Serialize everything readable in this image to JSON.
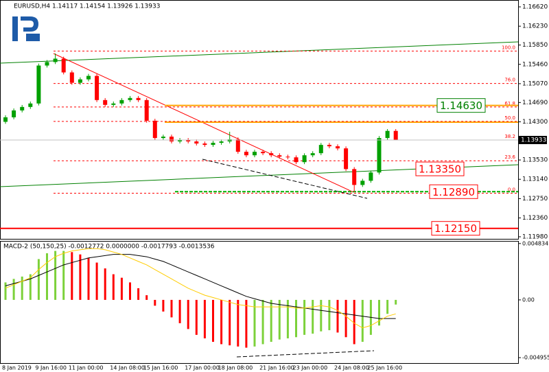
{
  "chart_data": [
    {
      "type": "candlestick",
      "title": "EURUSD,H4  1.14117 1.14154 1.13926 1.13933",
      "categories": [
        "8 Jan 2019",
        null,
        null,
        null,
        "9 Jan 16:00",
        null,
        null,
        null,
        "11 Jan 00:00",
        null,
        null,
        null,
        null,
        "14 Jan 08:00",
        null,
        null,
        null,
        "15 Jan 16:00",
        null,
        null,
        null,
        null,
        "17 Jan 00:00",
        null,
        null,
        null,
        "18 Jan 08:00",
        null,
        null,
        null,
        null,
        "21 Jan 16:00",
        null,
        null,
        null,
        "23 Jan 00:00",
        null,
        null,
        null,
        null,
        "24 Jan 08:00",
        null,
        null,
        null,
        "25 Jan 16:00",
        null,
        null,
        null
      ],
      "open": [
        1.143,
        1.14391,
        1.1453,
        1.146,
        1.1467,
        1.15436,
        1.15506,
        1.15575,
        1.15297,
        1.15088,
        1.15157,
        1.15227,
        1.14739,
        1.14642,
        1.1467,
        1.14739,
        1.14781,
        1.14739,
        1.14322,
        1.13973,
        1.14001,
        1.13904,
        1.13932,
        1.13904,
        1.13862,
        1.13834,
        1.13876,
        1.13904,
        1.13946,
        1.13695,
        1.13625,
        1.13695,
        1.13667,
        1.13625,
        1.13597,
        1.13583,
        1.13486,
        1.13625,
        1.13667,
        1.13834,
        1.13806,
        1.13764,
        1.13346,
        1.13026,
        1.1311,
        1.13277,
        1.13973,
        1.14117
      ],
      "high": [
        1.14431,
        1.1457,
        1.1464,
        1.1471,
        1.15476,
        1.15546,
        1.1568,
        1.15615,
        1.15337,
        1.15197,
        1.15267,
        1.15267,
        1.14779,
        1.1471,
        1.14779,
        1.14821,
        1.14821,
        1.14779,
        1.14362,
        1.14041,
        1.14041,
        1.13972,
        1.13972,
        1.13944,
        1.13902,
        1.13916,
        1.13944,
        1.141,
        1.13986,
        1.13735,
        1.13735,
        1.13735,
        1.13707,
        1.13665,
        1.13637,
        1.13623,
        1.13665,
        1.13707,
        1.13874,
        1.13874,
        1.13846,
        1.13804,
        1.13386,
        1.1315,
        1.13317,
        1.14013,
        1.14154,
        1.14154
      ],
      "low": [
        1.1426,
        1.14351,
        1.1449,
        1.1456,
        1.1463,
        1.15396,
        1.15466,
        1.15257,
        1.15048,
        1.15048,
        1.15117,
        1.14699,
        1.14602,
        1.14602,
        1.1463,
        1.14699,
        1.14699,
        1.14282,
        1.13933,
        1.13933,
        1.13864,
        1.13864,
        1.13864,
        1.13822,
        1.13794,
        1.13794,
        1.13836,
        1.13864,
        1.13655,
        1.13585,
        1.13585,
        1.13627,
        1.13585,
        1.13557,
        1.13543,
        1.13446,
        1.13446,
        1.13585,
        1.13627,
        1.13766,
        1.13724,
        1.13306,
        1.1288,
        1.12986,
        1.1307,
        1.13237,
        1.13933,
        1.13926
      ],
      "close": [
        1.14391,
        1.1453,
        1.146,
        1.1467,
        1.15436,
        1.15506,
        1.15575,
        1.15297,
        1.15088,
        1.15157,
        1.15227,
        1.14739,
        1.14642,
        1.1467,
        1.14739,
        1.14781,
        1.14739,
        1.14322,
        1.13973,
        1.14001,
        1.13904,
        1.13932,
        1.13904,
        1.13862,
        1.13834,
        1.13876,
        1.13904,
        1.13946,
        1.13695,
        1.13625,
        1.13695,
        1.13667,
        1.13625,
        1.13597,
        1.13583,
        1.13486,
        1.13625,
        1.13667,
        1.13834,
        1.13806,
        1.13764,
        1.13346,
        1.13026,
        1.1311,
        1.13277,
        1.13973,
        1.14117,
        1.13933
      ],
      "up_color": "#00a000",
      "down_color": "#ff0000",
      "ylim": [
        1.11938,
        1.16731
      ],
      "yticks": [
        {
          "value": 1.1662,
          "label": "1.16620"
        },
        {
          "value": 1.1623,
          "label": "1.16230"
        },
        {
          "value": 1.1585,
          "label": "1.15850"
        },
        {
          "value": 1.1546,
          "label": "1.15460"
        },
        {
          "value": 1.1507,
          "label": "1.15070"
        },
        {
          "value": 1.1469,
          "label": "1.14690"
        },
        {
          "value": 1.143,
          "label": "1.14300"
        },
        {
          "value": 1.1353,
          "label": "1.13530"
        },
        {
          "value": 1.1314,
          "label": "1.13140"
        },
        {
          "value": 1.1275,
          "label": "1.12750"
        },
        {
          "value": 1.1236,
          "label": "1.12360"
        },
        {
          "value": 1.1198,
          "label": "1.11980"
        }
      ],
      "current_price": {
        "value": 1.13933,
        "label": "1.13933"
      },
      "fib_levels": [
        {
          "value": 1.15728,
          "label": "100.0"
        },
        {
          "value": 1.15074,
          "label": "76.0"
        },
        {
          "value": 1.146,
          "label": "61.8"
        },
        {
          "value": 1.14308,
          "label": "50.0"
        },
        {
          "value": 1.13932,
          "label": "38.2"
        },
        {
          "value": 1.13514,
          "label": "23.6"
        },
        {
          "value": 1.12859,
          "label": "0.0"
        }
      ],
      "fib_color": "#ff0000",
      "levels": [
        {
          "value": 1.1463,
          "label": "1.14630",
          "label_color": "#008000",
          "line_color": "#ffa500"
        },
        {
          "value": 1.1335,
          "label": "1.13350",
          "label_color": "#ff0000"
        },
        {
          "value": 1.1289,
          "label": "1.12890",
          "label_color": "#ff0000",
          "line_color": "#00b000",
          "dashed": true
        },
        {
          "value": 1.1215,
          "label": "1.12150",
          "label_color": "#ff0000",
          "line_color": "#ff0000"
        }
      ]
    },
    {
      "type": "macd",
      "title": "MACD-2 (50,150,25) -0.0012772 0.0000000 -0.0017793 -0.0013536",
      "ylim": [
        -0.00548,
        0.005
      ],
      "yticks": [
        0.0048341,
        {
          "value": 0,
          "label": "0.00"
        },
        -0.004955
      ],
      "series": [
        {
          "style": "histogram",
          "up_color": "#7cd13a",
          "down_color": "#ff0000",
          "values": [
            0.0015,
            0.0018,
            0.002,
            0.0022,
            0.0035,
            0.004,
            0.0042,
            0.0042,
            0.0041,
            0.0039,
            0.0036,
            0.0032,
            0.0027,
            0.0022,
            0.0019,
            0.0015,
            0.001,
            0.0004,
            -0.0005,
            -0.001,
            -0.0015,
            -0.002,
            -0.0025,
            -0.003,
            -0.0033,
            -0.0036,
            -0.0038,
            -0.0039,
            -0.004,
            -0.0041,
            -0.004,
            -0.0038,
            -0.0036,
            -0.0034,
            -0.0033,
            -0.0032,
            -0.003,
            -0.0029,
            -0.0027,
            -0.0026,
            -0.0028,
            -0.0032,
            -0.0038,
            -0.0036,
            -0.003,
            -0.0022,
            -0.0012,
            -0.0004
          ]
        },
        {
          "style": "line",
          "color": "#000000",
          "values": [
            0.0012,
            0.0014,
            0.0016,
            0.0018,
            0.0021,
            0.0024,
            0.0027,
            0.003,
            0.0032,
            0.0034,
            0.0036,
            0.0037,
            0.0038,
            0.0039,
            0.0039,
            0.0039,
            0.0038,
            0.0037,
            0.0035,
            0.0033,
            0.003,
            0.0027,
            0.0024,
            0.0021,
            0.0018,
            0.0015,
            0.0012,
            0.0009,
            0.0006,
            0.0003,
            0.0001,
            -0.0001,
            -0.0003,
            -0.0004,
            -0.0005,
            -0.0006,
            -0.0007,
            -0.0008,
            -0.0009,
            -0.001,
            -0.0011,
            -0.0012,
            -0.0013,
            -0.0014,
            -0.0015,
            -0.0016,
            -0.0016,
            -0.0016
          ]
        },
        {
          "style": "line",
          "color": "#ffcc00",
          "values": [
            0.001,
            0.0013,
            0.0016,
            0.0019,
            0.0026,
            0.0032,
            0.0037,
            0.004,
            0.0042,
            0.0043,
            0.0044,
            0.0044,
            0.0043,
            0.0041,
            0.0039,
            0.0036,
            0.0033,
            0.003,
            0.0026,
            0.0022,
            0.0018,
            0.0014,
            0.001,
            0.0007,
            0.0004,
            0.0002,
            0,
            -0.0002,
            -0.0004,
            -0.0005,
            -0.0006,
            -0.0006,
            -0.0006,
            -0.0006,
            -0.0006,
            -0.0007,
            -0.0007,
            -0.0006,
            -0.0005,
            -0.0006,
            -0.0009,
            -0.0014,
            -0.002,
            -0.0024,
            -0.0022,
            -0.0018,
            -0.0014,
            -0.0012
          ]
        }
      ]
    }
  ]
}
